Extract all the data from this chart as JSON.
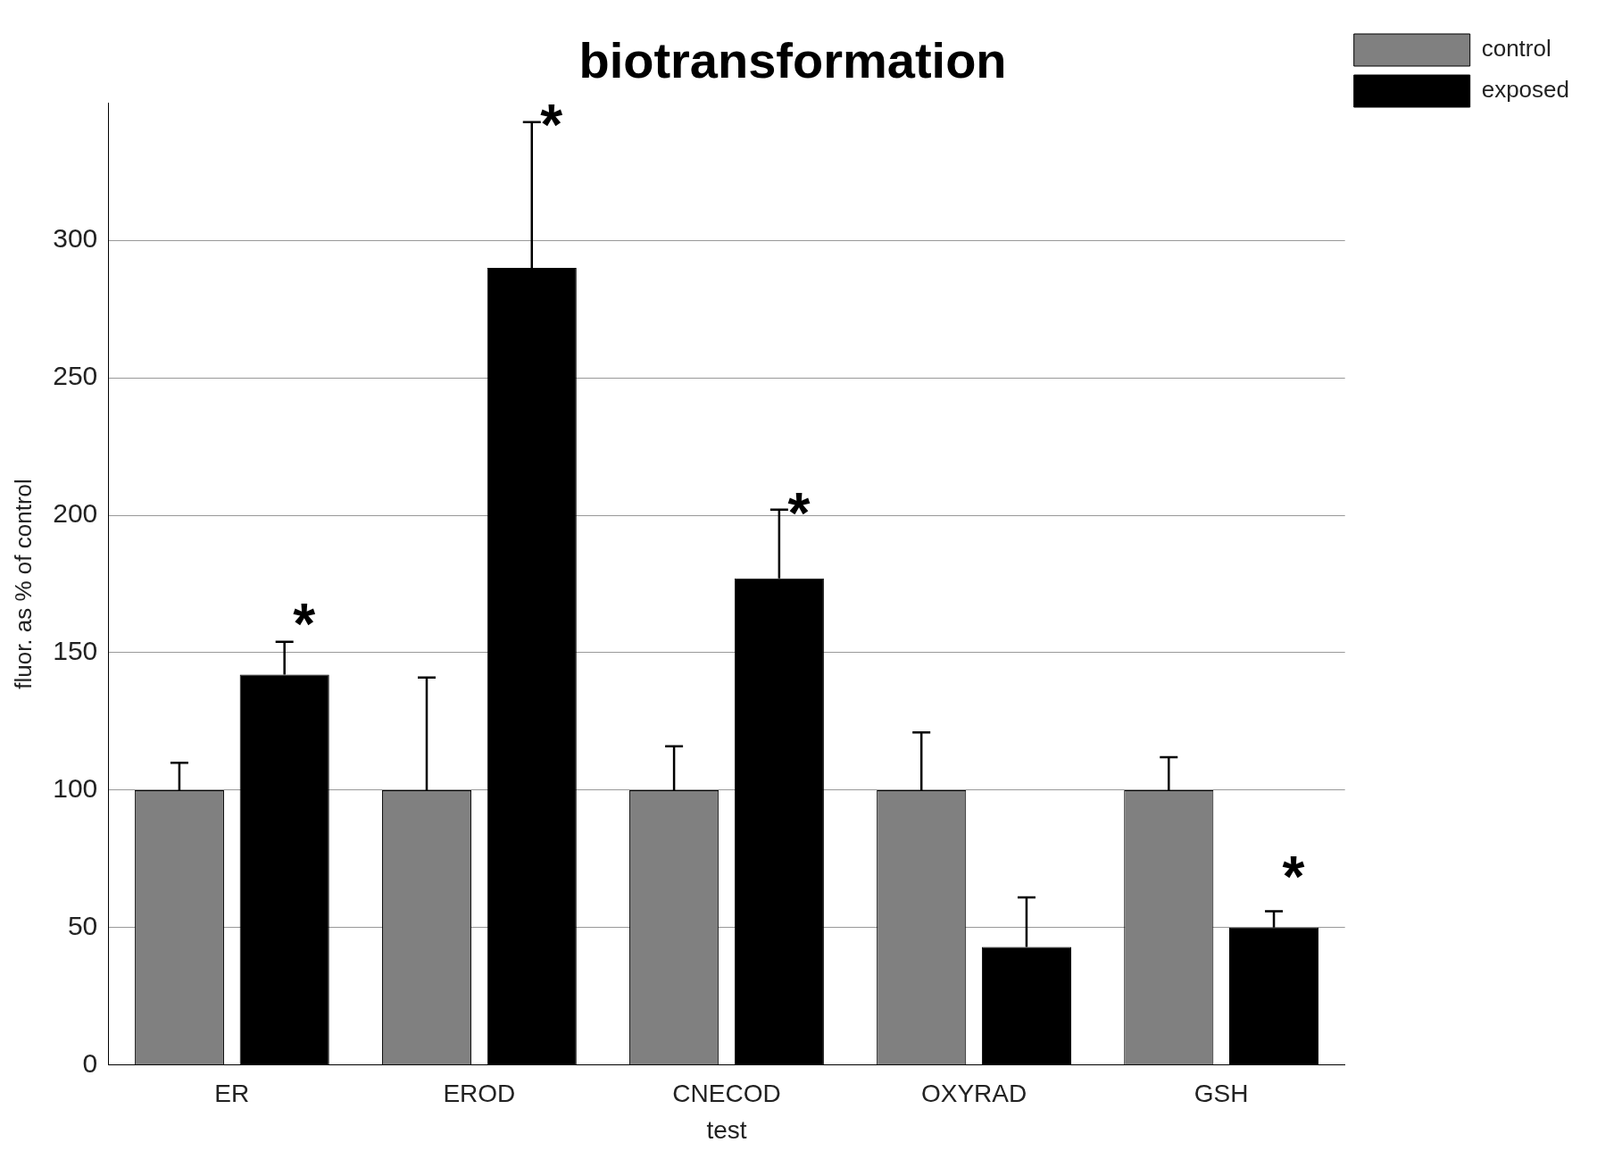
{
  "chart_data": {
    "type": "bar",
    "title": "biotransformation",
    "xlabel": "test",
    "ylabel": "fluor. as % of control",
    "categories": [
      "ER",
      "EROD",
      "CNECOD",
      "OXYRAD",
      "GSH"
    ],
    "series": [
      {
        "name": "control",
        "color": "#808080",
        "values": [
          100,
          100,
          100,
          100,
          100
        ],
        "errors": [
          [
            100,
            110
          ],
          [
            100,
            141
          ],
          [
            100,
            116
          ],
          [
            100,
            121
          ],
          [
            100,
            112
          ]
        ]
      },
      {
        "name": "exposed",
        "color": "#000000",
        "values": [
          142,
          290,
          177,
          43,
          50
        ],
        "errors": [
          [
            142,
            154
          ],
          [
            290,
            343
          ],
          [
            177,
            202
          ],
          [
            43,
            61
          ],
          [
            50,
            56
          ]
        ],
        "value_labels": [
          "*",
          "*",
          "*",
          null,
          "*"
        ]
      }
    ],
    "ylim": [
      0,
      350
    ],
    "yticks": [
      0,
      50,
      100,
      150,
      200,
      250,
      300
    ],
    "grid": "y",
    "legend": "top right"
  }
}
